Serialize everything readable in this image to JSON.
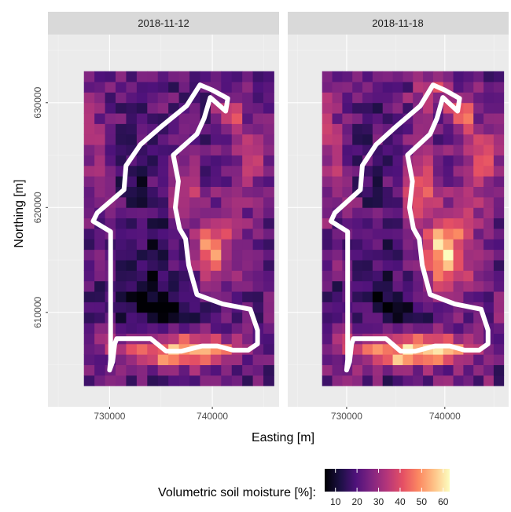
{
  "chart_data": {
    "type": "heatmap",
    "xlabel": "Easting [m]",
    "ylabel": "Northing [m]",
    "x_ticks": [
      730000,
      740000
    ],
    "x_tick_labels": [
      "730000",
      "740000"
    ],
    "y_ticks": [
      610000,
      620000,
      630000
    ],
    "y_tick_labels": [
      "610000",
      "620000",
      "630000"
    ],
    "xlim": [
      724000,
      746500
    ],
    "ylim": [
      601000,
      636500
    ],
    "grid_x": [
      727500,
      746000
    ],
    "grid_y": [
      603000,
      633000
    ],
    "grid_cols": 18,
    "grid_rows": 30,
    "legend": {
      "title": "Volumetric soil moisture [%]:",
      "position": "bottom",
      "min": 5,
      "max": 63,
      "ticks": [
        10,
        20,
        30,
        40,
        50,
        60
      ],
      "tick_labels": [
        "10",
        "20",
        "30",
        "40",
        "50",
        "60"
      ],
      "palette": [
        "#000004",
        "#1c1044",
        "#4f127b",
        "#812581",
        "#b5367a",
        "#e55064",
        "#fb8761",
        "#fec287",
        "#fcfdbf"
      ]
    },
    "boundary_color": "#ffffff",
    "boundary": [
      [
        730000,
        604500
      ],
      [
        730300,
        605300
      ],
      [
        730500,
        607000
      ],
      [
        730700,
        607500
      ],
      [
        734000,
        607500
      ],
      [
        735500,
        606300
      ],
      [
        737000,
        606300
      ],
      [
        739000,
        606800
      ],
      [
        740500,
        606800
      ],
      [
        742000,
        606400
      ],
      [
        743500,
        606400
      ],
      [
        744400,
        607000
      ],
      [
        744400,
        608300
      ],
      [
        743700,
        610300
      ],
      [
        741000,
        610800
      ],
      [
        738500,
        611700
      ],
      [
        737700,
        614500
      ],
      [
        737400,
        617000
      ],
      [
        736800,
        618000
      ],
      [
        736400,
        620000
      ],
      [
        736700,
        622500
      ],
      [
        736200,
        625000
      ],
      [
        738500,
        627000
      ],
      [
        739200,
        628500
      ],
      [
        739800,
        630500
      ],
      [
        741300,
        629200
      ],
      [
        741500,
        630400
      ],
      [
        740000,
        631200
      ],
      [
        738800,
        631700
      ],
      [
        737500,
        629700
      ],
      [
        735000,
        627700
      ],
      [
        733000,
        626000
      ],
      [
        731600,
        624000
      ],
      [
        731400,
        621700
      ],
      [
        728800,
        619500
      ],
      [
        728400,
        618700
      ],
      [
        730100,
        617700
      ],
      [
        730100,
        605500
      ],
      [
        730000,
        604500
      ]
    ],
    "series": [
      {
        "name": "2018-11-12",
        "hotspots": [
          {
            "x": 736900,
            "y": 606500,
            "sx": 3500,
            "sy": 1100,
            "amp": 30
          },
          {
            "x": 739500,
            "y": 606300,
            "sx": 1500,
            "sy": 800,
            "amp": 14
          },
          {
            "x": 730500,
            "y": 606800,
            "sx": 1200,
            "sy": 900,
            "amp": 8
          },
          {
            "x": 739800,
            "y": 616300,
            "sx": 1200,
            "sy": 2000,
            "amp": 26
          },
          {
            "x": 737800,
            "y": 622300,
            "sx": 700,
            "sy": 2000,
            "amp": 22
          },
          {
            "x": 736000,
            "y": 621500,
            "sx": 500,
            "sy": 1500,
            "amp": 14
          },
          {
            "x": 741800,
            "y": 629200,
            "sx": 900,
            "sy": 1200,
            "amp": 20
          },
          {
            "x": 744000,
            "y": 625000,
            "sx": 1800,
            "sy": 2000,
            "amp": 10
          },
          {
            "x": 728400,
            "y": 626000,
            "sx": 900,
            "sy": 4500,
            "amp": 8
          },
          {
            "x": 742500,
            "y": 617500,
            "sx": 2000,
            "sy": 4000,
            "amp": 6
          },
          {
            "x": 735000,
            "y": 605500,
            "sx": 1500,
            "sy": 500,
            "amp": 10
          }
        ],
        "coldspots": [
          {
            "x": 733500,
            "y": 611500,
            "sx": 2200,
            "sy": 2200,
            "amp": 12
          },
          {
            "x": 736500,
            "y": 610500,
            "sx": 3000,
            "sy": 900,
            "amp": 8
          },
          {
            "x": 732500,
            "y": 622500,
            "sx": 1000,
            "sy": 1800,
            "amp": 9
          },
          {
            "x": 734500,
            "y": 617000,
            "sx": 1400,
            "sy": 1800,
            "amp": 8
          },
          {
            "x": 738200,
            "y": 626000,
            "sx": 800,
            "sy": 1600,
            "amp": 5
          }
        ]
      },
      {
        "name": "2018-11-18",
        "hotspots": [
          {
            "x": 736900,
            "y": 606500,
            "sx": 3500,
            "sy": 1100,
            "amp": 33
          },
          {
            "x": 739500,
            "y": 606300,
            "sx": 1500,
            "sy": 800,
            "amp": 16
          },
          {
            "x": 730500,
            "y": 606800,
            "sx": 1200,
            "sy": 900,
            "amp": 10
          },
          {
            "x": 739700,
            "y": 616000,
            "sx": 1500,
            "sy": 2400,
            "amp": 32
          },
          {
            "x": 737800,
            "y": 622300,
            "sx": 900,
            "sy": 2000,
            "amp": 26
          },
          {
            "x": 736000,
            "y": 621500,
            "sx": 500,
            "sy": 1500,
            "amp": 16
          },
          {
            "x": 741800,
            "y": 629200,
            "sx": 900,
            "sy": 1200,
            "amp": 24
          },
          {
            "x": 744000,
            "y": 625000,
            "sx": 1800,
            "sy": 2000,
            "amp": 14
          },
          {
            "x": 738500,
            "y": 631000,
            "sx": 1200,
            "sy": 1200,
            "amp": 18
          },
          {
            "x": 728400,
            "y": 626000,
            "sx": 900,
            "sy": 4500,
            "amp": 10
          },
          {
            "x": 742500,
            "y": 617500,
            "sx": 2000,
            "sy": 4000,
            "amp": 8
          },
          {
            "x": 735000,
            "y": 605500,
            "sx": 1500,
            "sy": 500,
            "amp": 12
          }
        ],
        "coldspots": [
          {
            "x": 733500,
            "y": 611500,
            "sx": 2200,
            "sy": 2200,
            "amp": 8
          },
          {
            "x": 736500,
            "y": 610500,
            "sx": 3000,
            "sy": 900,
            "amp": 6
          },
          {
            "x": 732500,
            "y": 622500,
            "sx": 1000,
            "sy": 1800,
            "amp": 6
          },
          {
            "x": 734500,
            "y": 617000,
            "sx": 1400,
            "sy": 1800,
            "amp": 5
          }
        ]
      }
    ]
  }
}
